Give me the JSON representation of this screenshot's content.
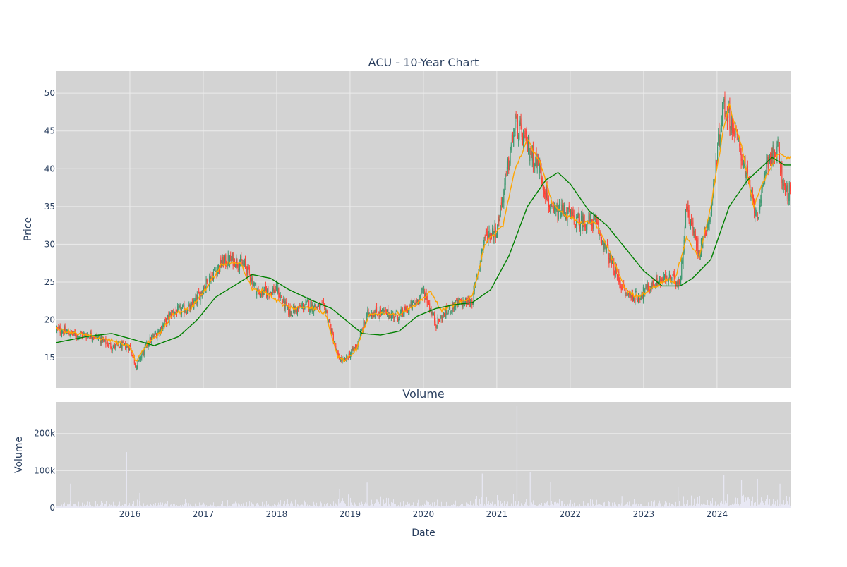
{
  "chart_data": [
    {
      "type": "candlestick",
      "title": "ACU - 10-Year Chart",
      "ylabel": "Price",
      "ylim": [
        11,
        53
      ],
      "yticks": [
        15,
        20,
        25,
        30,
        35,
        40,
        45,
        50
      ],
      "xlim": [
        "2015-01-01",
        "2024-12-31"
      ],
      "grid": true,
      "up_color": "#3d9970",
      "down_color": "#ff4136",
      "series": [
        {
          "name": "",
          "color": "#ffa500",
          "kind": "short moving average",
          "x": [
            "2015-01",
            "2015-04",
            "2015-07",
            "2015-10",
            "2016-01",
            "2016-02",
            "2016-04",
            "2016-06",
            "2016-08",
            "2016-11",
            "2017-02",
            "2017-04",
            "2017-07",
            "2017-09",
            "2017-11",
            "2018-02",
            "2018-04",
            "2018-06",
            "2018-09",
            "2018-11",
            "2018-12",
            "2019-02",
            "2019-04",
            "2019-06",
            "2019-09",
            "2019-12",
            "2020-02",
            "2020-04",
            "2020-06",
            "2020-09",
            "2020-11",
            "2021-02",
            "2021-04",
            "2021-06",
            "2021-08",
            "2021-10",
            "2021-12",
            "2022-03",
            "2022-05",
            "2022-08",
            "2022-10",
            "2022-12",
            "2023-03",
            "2023-05",
            "2023-06",
            "2023-08",
            "2023-10",
            "2023-12",
            "2024-02",
            "2024-03",
            "2024-05",
            "2024-07",
            "2024-09",
            "2024-11",
            "2024-12"
          ],
          "values": [
            18.8,
            18.2,
            17.8,
            17.3,
            16.4,
            14.5,
            17.0,
            18.3,
            20.8,
            21.5,
            24.8,
            27.3,
            27.7,
            24.0,
            23.8,
            22.0,
            21.5,
            21.8,
            20.8,
            15.2,
            14.6,
            16.0,
            20.5,
            21.0,
            20.8,
            22.0,
            23.8,
            21.3,
            22.0,
            23.0,
            30.0,
            32.5,
            40.0,
            43.8,
            41.0,
            35.5,
            34.0,
            32.8,
            33.0,
            28.0,
            24.0,
            23.0,
            24.5,
            25.5,
            24.8,
            31.0,
            28.2,
            35.0,
            45.0,
            48.5,
            43.0,
            35.0,
            39.0,
            42.0,
            41.5
          ]
        },
        {
          "name": "",
          "color": "#008000",
          "kind": "long moving average",
          "x": [
            "2015-01",
            "2015-06",
            "2015-10",
            "2016-02",
            "2016-05",
            "2016-09",
            "2016-12",
            "2017-03",
            "2017-07",
            "2017-09",
            "2017-12",
            "2018-03",
            "2018-07",
            "2018-10",
            "2019-01",
            "2019-03",
            "2019-06",
            "2019-09",
            "2019-12",
            "2020-03",
            "2020-06",
            "2020-09",
            "2020-12",
            "2021-03",
            "2021-06",
            "2021-09",
            "2021-11",
            "2022-01",
            "2022-04",
            "2022-07",
            "2022-10",
            "2023-01",
            "2023-04",
            "2023-07",
            "2023-09",
            "2023-12",
            "2024-03",
            "2024-06",
            "2024-08",
            "2024-10",
            "2024-12"
          ],
          "values": [
            17.0,
            17.8,
            18.2,
            17.3,
            16.6,
            17.8,
            20.0,
            23.0,
            25.0,
            26.0,
            25.5,
            24.0,
            22.5,
            21.5,
            19.5,
            18.2,
            18.0,
            18.5,
            20.5,
            21.5,
            22.0,
            22.3,
            24.0,
            28.5,
            35.0,
            38.5,
            39.5,
            38.0,
            34.5,
            32.5,
            29.5,
            26.5,
            24.5,
            24.5,
            25.5,
            28.0,
            35.0,
            38.5,
            40.0,
            41.5,
            40.5
          ]
        }
      ],
      "ohlc_path": {
        "x": [
          "2015-01",
          "2015-04",
          "2015-07",
          "2015-10",
          "2016-01",
          "2016-02",
          "2016-04",
          "2016-06",
          "2016-08",
          "2016-11",
          "2017-02",
          "2017-04",
          "2017-06",
          "2017-08",
          "2017-10",
          "2018-01",
          "2018-03",
          "2018-06",
          "2018-09",
          "2018-11",
          "2018-12",
          "2019-02",
          "2019-04",
          "2019-06",
          "2019-09",
          "2019-12",
          "2020-01",
          "2020-03",
          "2020-06",
          "2020-09",
          "2020-11",
          "2021-01",
          "2021-03",
          "2021-04",
          "2021-06",
          "2021-08",
          "2021-10",
          "2021-12",
          "2022-02",
          "2022-05",
          "2022-08",
          "2022-10",
          "2022-12",
          "2023-03",
          "2023-05",
          "2023-07",
          "2023-08",
          "2023-10",
          "2023-12",
          "2024-01",
          "2024-02",
          "2024-03",
          "2024-05",
          "2024-07",
          "2024-08",
          "2024-09",
          "2024-11",
          "2024-12"
        ],
        "values": [
          18.8,
          18.0,
          18.0,
          16.5,
          16.5,
          13.8,
          17.0,
          18.8,
          21.0,
          21.5,
          25.5,
          27.5,
          28.0,
          27.0,
          23.5,
          24.0,
          21.0,
          22.0,
          21.5,
          15.0,
          14.5,
          16.5,
          21.0,
          21.0,
          20.5,
          22.5,
          24.0,
          19.5,
          22.0,
          22.5,
          31.0,
          32.0,
          41.0,
          46.0,
          43.0,
          40.0,
          34.0,
          34.5,
          33.0,
          33.0,
          27.0,
          23.5,
          23.0,
          25.0,
          25.5,
          25.0,
          35.0,
          29.0,
          34.0,
          42.0,
          48.5,
          47.0,
          42.0,
          35.0,
          34.0,
          41.0,
          42.5,
          37.0
        ]
      }
    },
    {
      "type": "bar",
      "title": "Volume",
      "xlabel": "Date",
      "ylabel": "Volume",
      "ylim": [
        0,
        285000
      ],
      "yticks": [
        {
          "v": 0,
          "label": "0"
        },
        {
          "v": 100000,
          "label": "100k"
        },
        {
          "v": 200000,
          "label": "200k"
        }
      ],
      "xticks": [
        "2016",
        "2017",
        "2018",
        "2019",
        "2020",
        "2021",
        "2022",
        "2023",
        "2024"
      ],
      "color": "#e8e8f4",
      "spikes": [
        {
          "x": "2015-12-15",
          "v": 150000
        },
        {
          "x": "2015-03-10",
          "v": 65000
        },
        {
          "x": "2016-02-20",
          "v": 40000
        },
        {
          "x": "2018-11-10",
          "v": 50000
        },
        {
          "x": "2019-03-25",
          "v": 68000
        },
        {
          "x": "2020-10-20",
          "v": 92000
        },
        {
          "x": "2021-04-10",
          "v": 275000
        },
        {
          "x": "2021-06-15",
          "v": 95000
        },
        {
          "x": "2021-09-25",
          "v": 70000
        },
        {
          "x": "2023-06-20",
          "v": 57000
        },
        {
          "x": "2024-02-05",
          "v": 88000
        },
        {
          "x": "2024-05-01",
          "v": 76000
        },
        {
          "x": "2024-07-20",
          "v": 78000
        },
        {
          "x": "2024-11-10",
          "v": 65000
        },
        {
          "x": "2022-09-15",
          "v": 30000
        }
      ]
    }
  ]
}
